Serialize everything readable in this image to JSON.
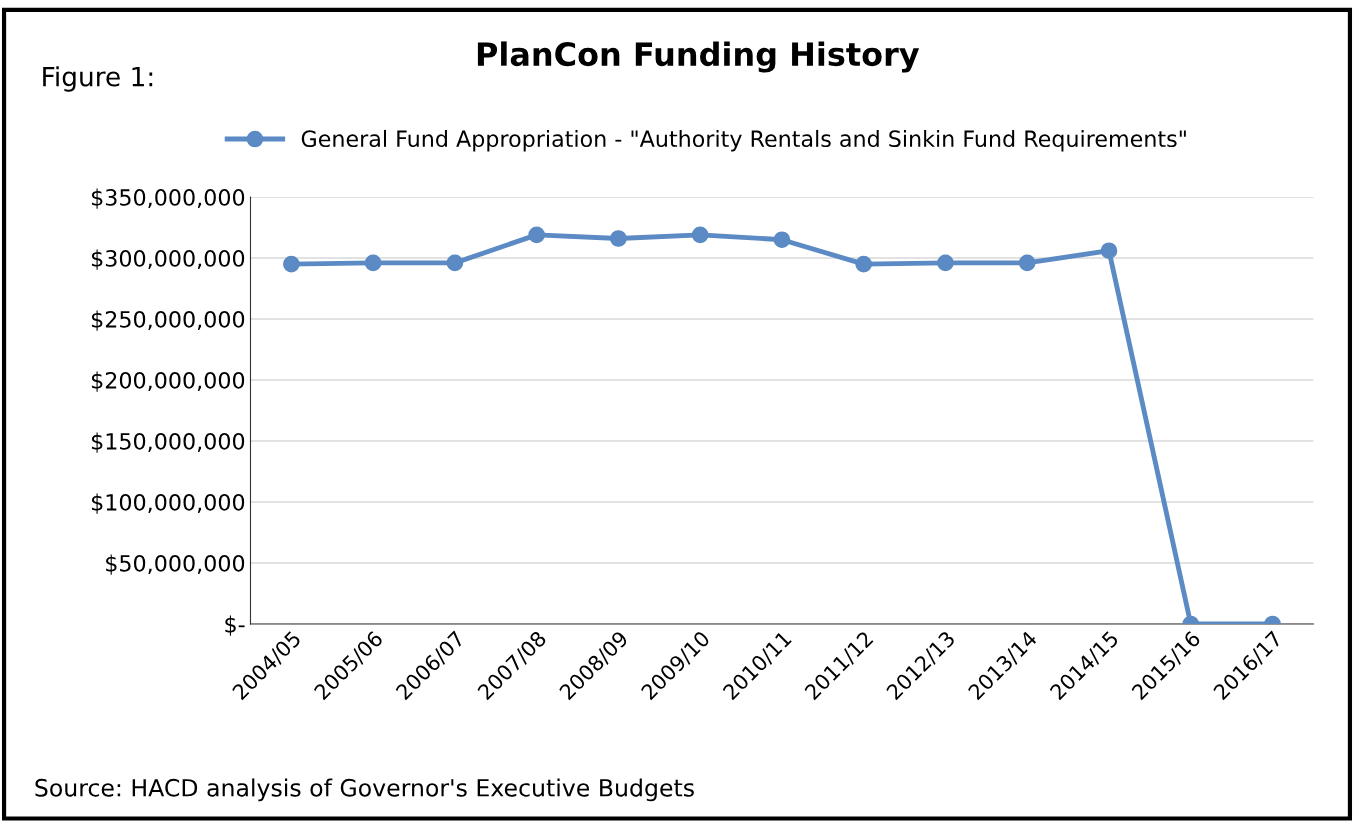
{
  "chart_data": {
    "type": "line",
    "title": "PlanCon Funding History",
    "annotations": [
      "Figure 1:",
      "Source: HACD analysis of Governor's Executive Budgets"
    ],
    "categories": [
      "2004/05",
      "2005/06",
      "2006/07",
      "2007/08",
      "2008/09",
      "2009/10",
      "2010/11",
      "2011/12",
      "2012/13",
      "2013/14",
      "2014/15",
      "2015/16",
      "2016/17"
    ],
    "series": [
      {
        "name": "General Fund Appropriation - \"Authority Rentals and Sinkin Fund Requirements\"",
        "color": "#5b8ac4",
        "values": [
          295000000,
          296000000,
          296000000,
          319000000,
          316000000,
          319000000,
          315000000,
          295000000,
          296000000,
          296000000,
          306000000,
          0,
          0
        ]
      }
    ],
    "ylim": [
      0,
      350000000
    ],
    "yticks": [
      {
        "value": 0,
        "label": "$-"
      },
      {
        "value": 50000000,
        "label": "$50,000,000"
      },
      {
        "value": 100000000,
        "label": "$100,000,000"
      },
      {
        "value": 150000000,
        "label": "$150,000,000"
      },
      {
        "value": 200000000,
        "label": "$200,000,000"
      },
      {
        "value": 250000000,
        "label": "$250,000,000"
      },
      {
        "value": 300000000,
        "label": "$300,000,000"
      },
      {
        "value": 350000000,
        "label": "$350,000,000"
      }
    ],
    "grid": "y",
    "legend": "top",
    "marker": "circle",
    "line_style": "solid"
  }
}
